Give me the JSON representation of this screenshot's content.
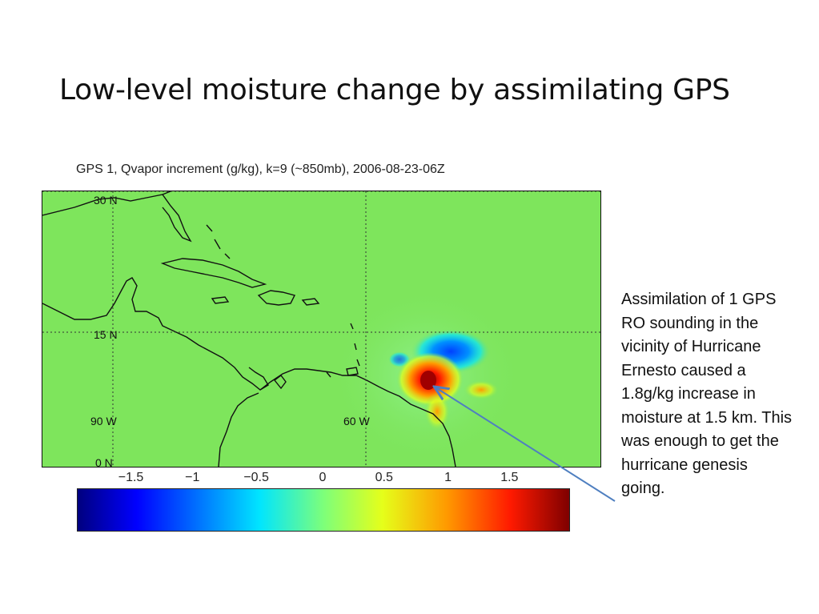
{
  "slide": {
    "title": "Low-level moisture change by assimilating GPS",
    "description": "Assimilation of 1 GPS RO sounding in the vicinity of Hurricane Ernesto caused a 1.8g/kg increase in moisture at 1.5 km. This was enough to get the hurricane genesis going."
  },
  "map": {
    "caption": "GPS 1, Qvapor increment (g/kg), k=9 (~850mb), 2006-08-23-06Z",
    "background_color": "#7ee55c",
    "lat_labels": [
      "30 N",
      "15 N",
      "0 N"
    ],
    "lon_labels": [
      "90 W",
      "60 W"
    ]
  },
  "colorbar": {
    "ticks": [
      "−1.5",
      "−1",
      "−0.5",
      "0",
      "0.5",
      "1",
      "1.5"
    ],
    "colormap": "jet"
  },
  "colors": {
    "positive": "#ff1a00",
    "negative": "#0060ff",
    "arrow": "#4f7fc0"
  }
}
